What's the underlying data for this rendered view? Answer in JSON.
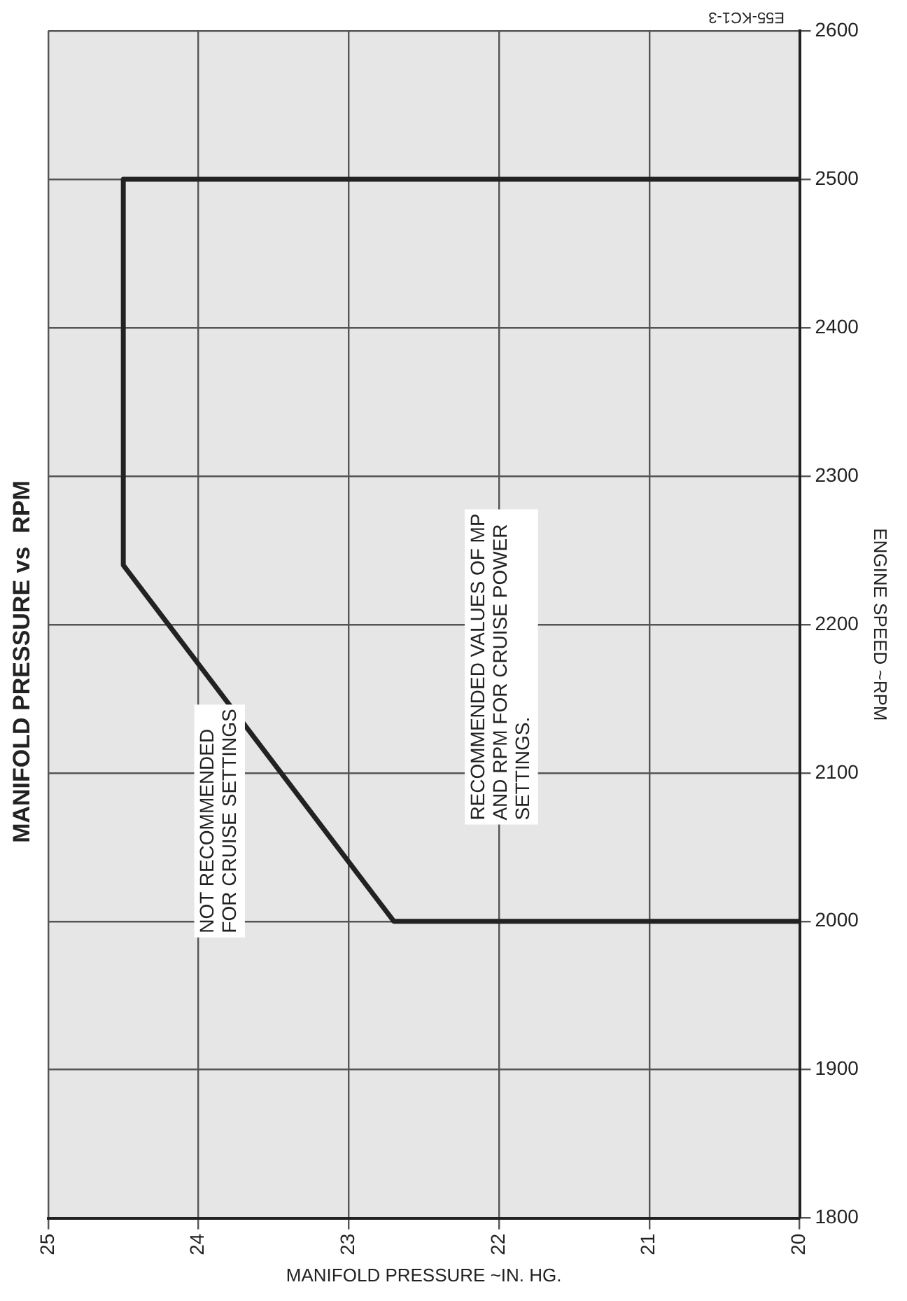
{
  "chart_data": {
    "type": "line",
    "title": "MANIFOLD PRESSURE vs  RPM",
    "xlabel": "MANIFOLD PRESSURE ~IN. HG.",
    "ylabel": "ENGINE SPEED ~RPM",
    "annotations": [
      "NOT RECOMMENDED\nFOR CRUISE SETTINGS",
      "RECOMMENDED VALUES OF MP\nAND RPM FOR CRUISE POWER\nSETTINGS.",
      "E55-KC1-3"
    ],
    "series": [
      {
        "color": "#222222",
        "x": [
          20,
          22.7,
          24.5,
          24.5,
          20
        ],
        "values": [
          2000,
          2000,
          2240,
          2500,
          2500
        ]
      }
    ],
    "xlim": [
      25,
      20
    ],
    "xticks": [
      25,
      24,
      23,
      22,
      21,
      20
    ],
    "ylim": [
      1800,
      2600
    ],
    "yticks": [
      1800,
      1900,
      2000,
      2100,
      2200,
      2300,
      2400,
      2500,
      2600
    ],
    "grid": true,
    "legend": false,
    "marker": "none",
    "line_style": "solid"
  }
}
